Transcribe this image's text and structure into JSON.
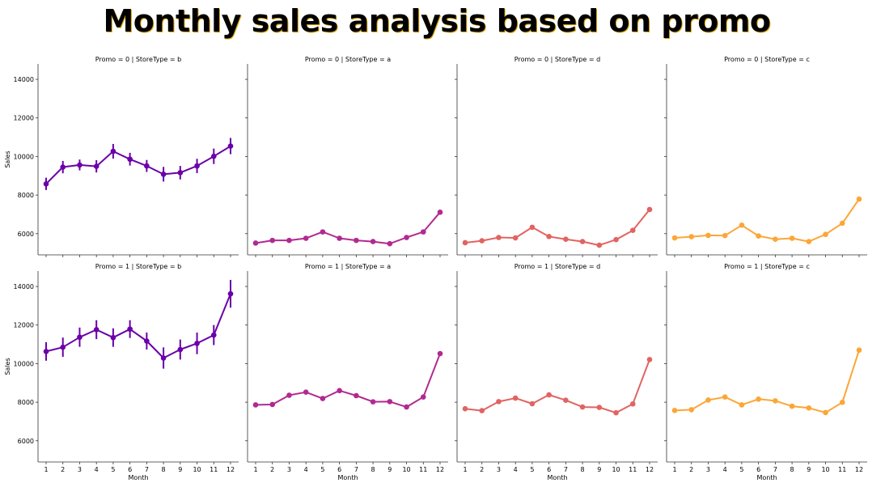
{
  "title": "Monthly sales analysis based on promo",
  "chart_data": {
    "type": "line",
    "title": "Monthly sales analysis based on promo",
    "xlabel": "Month",
    "ylabel": "Sales",
    "x": [
      1,
      2,
      3,
      4,
      5,
      6,
      7,
      8,
      9,
      10,
      11,
      12
    ],
    "ylim": [
      4900,
      14800
    ],
    "yticks": [
      6000,
      8000,
      10000,
      12000,
      14000
    ],
    "grid": false,
    "panels": [
      {
        "row": 0,
        "col": 0,
        "label": "Promo = 0 | StoreType = b",
        "color": "#6a00a8",
        "values": [
          8580,
          9450,
          9560,
          9490,
          10270,
          9860,
          9510,
          9080,
          9160,
          9510,
          10010,
          10540
        ],
        "err": [
          320,
          320,
          280,
          320,
          380,
          330,
          310,
          380,
          350,
          370,
          400,
          420
        ]
      },
      {
        "row": 0,
        "col": 1,
        "label": "Promo = 0 | StoreType = a",
        "color": "#b12a90",
        "values": [
          5510,
          5650,
          5650,
          5760,
          6090,
          5760,
          5650,
          5590,
          5480,
          5800,
          6090,
          7110
        ]
      },
      {
        "row": 0,
        "col": 2,
        "label": "Promo = 0 | StoreType = d",
        "color": "#e16462",
        "values": [
          5530,
          5630,
          5800,
          5780,
          6330,
          5850,
          5710,
          5590,
          5400,
          5690,
          6170,
          7250
        ]
      },
      {
        "row": 0,
        "col": 3,
        "label": "Promo = 0 | StoreType = c",
        "color": "#fca636",
        "values": [
          5780,
          5840,
          5910,
          5900,
          6440,
          5880,
          5710,
          5760,
          5590,
          5960,
          6540,
          7790
        ]
      },
      {
        "row": 1,
        "col": 0,
        "label": "Promo = 1 | StoreType = b",
        "color": "#6a00a8",
        "values": [
          10630,
          10850,
          11370,
          11760,
          11350,
          11790,
          11170,
          10290,
          10730,
          11050,
          11480,
          13620
        ],
        "err": [
          480,
          500,
          500,
          490,
          480,
          460,
          440,
          550,
          520,
          560,
          520,
          720
        ]
      },
      {
        "row": 1,
        "col": 1,
        "label": "Promo = 1 | StoreType = a",
        "color": "#b12a90",
        "values": [
          7860,
          7880,
          8360,
          8520,
          8190,
          8600,
          8340,
          8020,
          8030,
          7750,
          8270,
          10520
        ]
      },
      {
        "row": 1,
        "col": 2,
        "label": "Promo = 1 | StoreType = d",
        "color": "#e16462",
        "values": [
          7660,
          7560,
          8030,
          8210,
          7920,
          8380,
          8100,
          7750,
          7730,
          7450,
          7910,
          10210
        ]
      },
      {
        "row": 1,
        "col": 3,
        "label": "Promo = 1 | StoreType = c",
        "color": "#fca636",
        "values": [
          7570,
          7610,
          8110,
          8270,
          7860,
          8160,
          8070,
          7790,
          7700,
          7460,
          7990,
          10700
        ]
      }
    ]
  }
}
